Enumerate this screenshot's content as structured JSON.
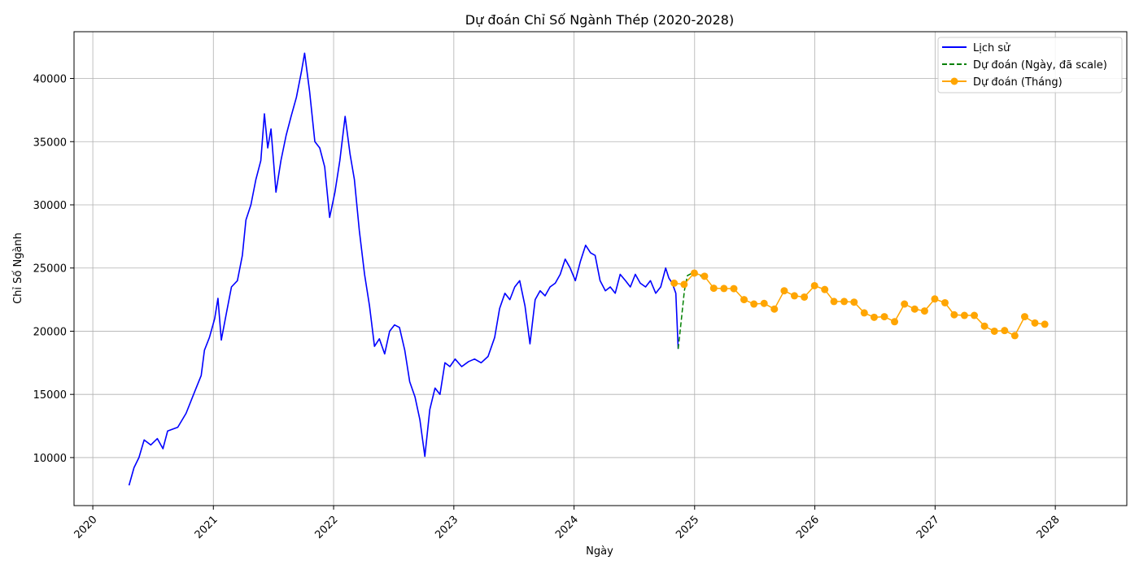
{
  "chart_data": {
    "type": "line",
    "title": "Dự đoán Chỉ Số Ngành Thép (2020-2028)",
    "xlabel": "Ngày",
    "ylabel": "Chỉ Số Ngành",
    "xlim": [
      "2019-11-05",
      "2028-08-05"
    ],
    "ylim": [
      6200,
      43700
    ],
    "grid": true,
    "legend_position": "top-right",
    "x_ticks": [
      "2020",
      "2021",
      "2022",
      "2023",
      "2024",
      "2025",
      "2026",
      "2027",
      "2028"
    ],
    "y_ticks": [
      10000,
      15000,
      20000,
      25000,
      30000,
      35000,
      40000
    ],
    "series": [
      {
        "name": "Lịch sử",
        "color": "#0000ff",
        "style": "solid",
        "points": [
          [
            "2020-04-20",
            7800
          ],
          [
            "2020-05-05",
            9200
          ],
          [
            "2020-05-20",
            10000
          ],
          [
            "2020-06-05",
            11400
          ],
          [
            "2020-06-25",
            11000
          ],
          [
            "2020-07-15",
            11500
          ],
          [
            "2020-08-01",
            10700
          ],
          [
            "2020-08-15",
            12100
          ],
          [
            "2020-09-15",
            12400
          ],
          [
            "2020-10-10",
            13500
          ],
          [
            "2020-11-05",
            15200
          ],
          [
            "2020-11-25",
            16500
          ],
          [
            "2020-12-05",
            18500
          ],
          [
            "2020-12-20",
            19500
          ],
          [
            "2021-01-05",
            21000
          ],
          [
            "2021-01-15",
            22600
          ],
          [
            "2021-01-25",
            19300
          ],
          [
            "2021-02-10",
            21500
          ],
          [
            "2021-02-25",
            23500
          ],
          [
            "2021-03-15",
            24000
          ],
          [
            "2021-03-30",
            26000
          ],
          [
            "2021-04-10",
            28800
          ],
          [
            "2021-04-25",
            30000
          ],
          [
            "2021-05-10",
            32000
          ],
          [
            "2021-05-25",
            33500
          ],
          [
            "2021-06-05",
            37200
          ],
          [
            "2021-06-15",
            34500
          ],
          [
            "2021-06-25",
            36000
          ],
          [
            "2021-07-10",
            31000
          ],
          [
            "2021-07-25",
            33500
          ],
          [
            "2021-08-10",
            35500
          ],
          [
            "2021-08-25",
            37000
          ],
          [
            "2021-09-10",
            38500
          ],
          [
            "2021-09-25",
            40500
          ],
          [
            "2021-10-05",
            42000
          ],
          [
            "2021-10-20",
            39000
          ],
          [
            "2021-11-05",
            35000
          ],
          [
            "2021-11-20",
            34500
          ],
          [
            "2021-12-05",
            33000
          ],
          [
            "2021-12-20",
            29000
          ],
          [
            "2022-01-05",
            31000
          ],
          [
            "2022-01-20",
            33500
          ],
          [
            "2022-02-05",
            37000
          ],
          [
            "2022-02-20",
            34000
          ],
          [
            "2022-03-05",
            32000
          ],
          [
            "2022-03-20",
            28000
          ],
          [
            "2022-04-05",
            24500
          ],
          [
            "2022-04-20",
            22000
          ],
          [
            "2022-05-05",
            18800
          ],
          [
            "2022-05-20",
            19400
          ],
          [
            "2022-06-05",
            18200
          ],
          [
            "2022-06-20",
            20000
          ],
          [
            "2022-07-05",
            20500
          ],
          [
            "2022-07-20",
            20300
          ],
          [
            "2022-08-05",
            18500
          ],
          [
            "2022-08-20",
            16000
          ],
          [
            "2022-09-05",
            14800
          ],
          [
            "2022-09-20",
            13000
          ],
          [
            "2022-10-05",
            10100
          ],
          [
            "2022-10-20",
            13800
          ],
          [
            "2022-11-05",
            15500
          ],
          [
            "2022-11-20",
            15000
          ],
          [
            "2022-12-05",
            17500
          ],
          [
            "2022-12-20",
            17200
          ],
          [
            "2023-01-05",
            17800
          ],
          [
            "2023-01-25",
            17200
          ],
          [
            "2023-02-15",
            17600
          ],
          [
            "2023-03-05",
            17800
          ],
          [
            "2023-03-25",
            17500
          ],
          [
            "2023-04-15",
            18000
          ],
          [
            "2023-05-05",
            19500
          ],
          [
            "2023-05-20",
            21800
          ],
          [
            "2023-06-05",
            23000
          ],
          [
            "2023-06-20",
            22500
          ],
          [
            "2023-07-05",
            23500
          ],
          [
            "2023-07-20",
            24000
          ],
          [
            "2023-08-05",
            22000
          ],
          [
            "2023-08-20",
            19000
          ],
          [
            "2023-09-05",
            22500
          ],
          [
            "2023-09-20",
            23200
          ],
          [
            "2023-10-05",
            22800
          ],
          [
            "2023-10-20",
            23500
          ],
          [
            "2023-11-05",
            23800
          ],
          [
            "2023-11-20",
            24500
          ],
          [
            "2023-12-05",
            25700
          ],
          [
            "2023-12-20",
            25000
          ],
          [
            "2024-01-05",
            24000
          ],
          [
            "2024-01-20",
            25500
          ],
          [
            "2024-02-05",
            26800
          ],
          [
            "2024-02-20",
            26200
          ],
          [
            "2024-03-05",
            26000
          ],
          [
            "2024-03-20",
            24000
          ],
          [
            "2024-04-05",
            23200
          ],
          [
            "2024-04-20",
            23500
          ],
          [
            "2024-05-05",
            23000
          ],
          [
            "2024-05-20",
            24500
          ],
          [
            "2024-06-05",
            24000
          ],
          [
            "2024-06-20",
            23500
          ],
          [
            "2024-07-05",
            24500
          ],
          [
            "2024-07-20",
            23800
          ],
          [
            "2024-08-05",
            23500
          ],
          [
            "2024-08-20",
            24000
          ],
          [
            "2024-09-05",
            23000
          ],
          [
            "2024-09-20",
            23500
          ],
          [
            "2024-10-05",
            25000
          ],
          [
            "2024-10-15",
            24200
          ],
          [
            "2024-10-25",
            23800
          ],
          [
            "2024-11-05",
            23000
          ],
          [
            "2024-11-12",
            18600
          ]
        ]
      },
      {
        "name": "Dự đoán (Ngày, đã scale)",
        "color": "#008000",
        "style": "dashed",
        "points": [
          [
            "2024-11-12",
            18600
          ],
          [
            "2024-11-20",
            20500
          ],
          [
            "2024-12-01",
            23200
          ],
          [
            "2024-12-10",
            24400
          ],
          [
            "2024-12-25",
            24600
          ],
          [
            "2025-01-10",
            24500
          ],
          [
            "2025-01-25",
            24300
          ]
        ]
      },
      {
        "name": "Dự đoán (Tháng)",
        "color": "#ffa500",
        "style": "solid-markers",
        "points": [
          [
            "2024-10-31",
            23800
          ],
          [
            "2024-11-30",
            23700
          ],
          [
            "2024-12-31",
            24600
          ],
          [
            "2025-01-31",
            24350
          ],
          [
            "2025-02-28",
            23400
          ],
          [
            "2025-03-31",
            23380
          ],
          [
            "2025-04-30",
            23370
          ],
          [
            "2025-05-31",
            22500
          ],
          [
            "2025-06-30",
            22150
          ],
          [
            "2025-07-31",
            22200
          ],
          [
            "2025-08-31",
            21750
          ],
          [
            "2025-09-30",
            23200
          ],
          [
            "2025-10-31",
            22800
          ],
          [
            "2025-11-30",
            22700
          ],
          [
            "2025-12-31",
            23600
          ],
          [
            "2026-01-31",
            23300
          ],
          [
            "2026-02-28",
            22350
          ],
          [
            "2026-03-31",
            22350
          ],
          [
            "2026-04-30",
            22300
          ],
          [
            "2026-05-31",
            21450
          ],
          [
            "2026-06-30",
            21100
          ],
          [
            "2026-07-31",
            21150
          ],
          [
            "2026-08-31",
            20750
          ],
          [
            "2026-09-30",
            22150
          ],
          [
            "2026-10-31",
            21750
          ],
          [
            "2026-11-30",
            21600
          ],
          [
            "2026-12-31",
            22550
          ],
          [
            "2027-01-31",
            22250
          ],
          [
            "2027-02-28",
            21300
          ],
          [
            "2027-03-31",
            21250
          ],
          [
            "2027-04-30",
            21250
          ],
          [
            "2027-05-31",
            20400
          ],
          [
            "2027-06-30",
            20000
          ],
          [
            "2027-07-31",
            20050
          ],
          [
            "2027-08-31",
            19650
          ],
          [
            "2027-09-30",
            21150
          ],
          [
            "2027-10-31",
            20650
          ],
          [
            "2027-11-30",
            20550
          ]
        ]
      }
    ]
  }
}
